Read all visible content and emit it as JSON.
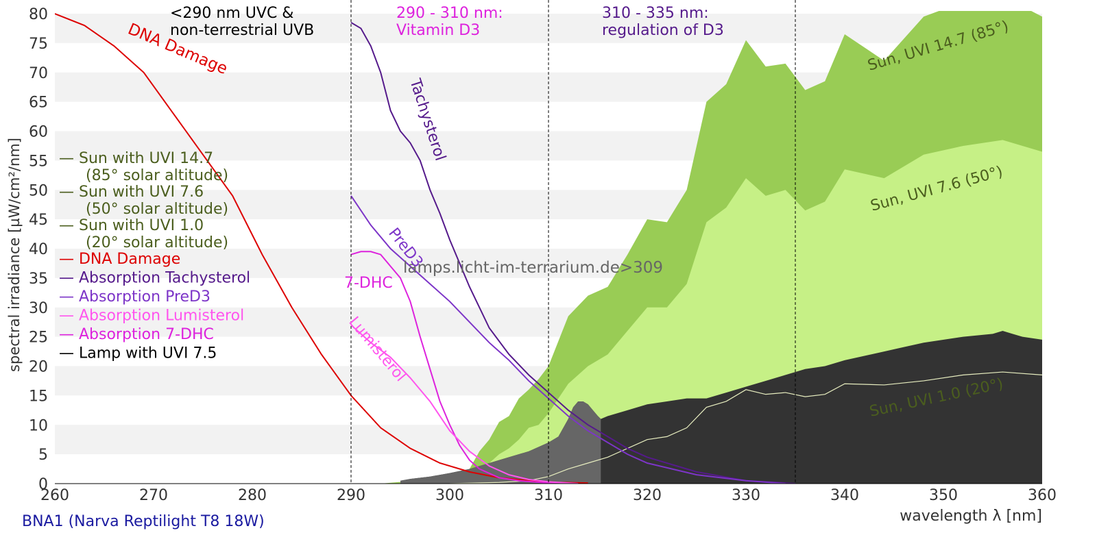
{
  "chart_data": {
    "type": "area",
    "xlabel": "wavelength λ [nm]",
    "ylabel": "spectral irradiance [µW/cm²/nm]",
    "xlim": [
      260,
      360
    ],
    "ylim": [
      0,
      80
    ],
    "xticks": [
      260,
      270,
      280,
      290,
      300,
      310,
      320,
      330,
      340,
      350,
      360
    ],
    "yticks": [
      0,
      5,
      10,
      15,
      20,
      25,
      30,
      35,
      40,
      45,
      50,
      55,
      60,
      65,
      70,
      75,
      80
    ],
    "grid": "horizontal bands",
    "legend_position": "left",
    "source_label": "BNA1 (Narva Reptilight T8 18W)",
    "watermark": "lamps.licht-im-terrarium.de>309",
    "region_markers": [
      290,
      310,
      335
    ],
    "regions": [
      {
        "label_line1": "<290 nm UVC &",
        "label_line2": "non-terrestrial UVB",
        "color": "#000000"
      },
      {
        "label_line1": "290 - 310 nm:",
        "label_line2": "Vitamin D3",
        "color": "#dd22dd"
      },
      {
        "label_line1": "310 - 335 nm:",
        "label_line2": "regulation of D3",
        "color": "#551a8b"
      }
    ],
    "legend": [
      {
        "line1": "— Sun with UVI 14.7",
        "line2": "(85° solar altitude)",
        "color": "#4b5e1e"
      },
      {
        "line1": "— Sun with UVI 7.6",
        "line2": "(50° solar altitude)",
        "color": "#4b5e1e"
      },
      {
        "line1": "— Sun with UVI 1.0",
        "line2": "(20° solar altitude)",
        "color": "#4b5e1e"
      },
      {
        "line1": "— DNA Damage",
        "line2": "",
        "color": "#dd0000"
      },
      {
        "line1": "— Absorption Tachysterol",
        "line2": "",
        "color": "#551a8b"
      },
      {
        "line1": "— Absorption PreD3",
        "line2": "",
        "color": "#7d35c8"
      },
      {
        "line1": "— Absorption Lumisterol",
        "line2": "",
        "color": "#ff55ee"
      },
      {
        "line1": "— Absorption 7-DHC",
        "line2": "",
        "color": "#dd22dd"
      },
      {
        "line1": "— Lamp with UVI 7.5",
        "line2": "",
        "color": "#000000"
      }
    ],
    "series": [
      {
        "name": "Sun, UVI 14.7 (85°)",
        "kind": "area",
        "color": "#99cc55",
        "label_color": "#4b5e1e",
        "x": [
          293,
          300,
          302,
          303,
          304,
          305,
          306,
          307,
          308,
          309,
          310,
          312,
          314,
          316,
          318,
          320,
          322,
          324,
          326,
          328,
          330,
          332,
          334,
          336,
          338,
          340,
          344,
          348,
          352,
          356,
          360
        ],
        "y": [
          0,
          1,
          2.5,
          5.5,
          7.5,
          10.5,
          11.5,
          14.5,
          16,
          17.8,
          20,
          28.5,
          32,
          33.5,
          39,
          45,
          44.5,
          50,
          65,
          68,
          75.5,
          71,
          71.5,
          67,
          68.5,
          76.5,
          72,
          79.5,
          82,
          83,
          79.5
        ]
      },
      {
        "name": "Sun, UVI 7.6 (50°)",
        "kind": "area",
        "color": "#c6f086",
        "label_color": "#4b5e1e",
        "x": [
          297,
          300,
          302,
          303,
          304,
          305,
          306,
          307,
          308,
          309,
          310,
          312,
          314,
          316,
          318,
          320,
          322,
          324,
          326,
          328,
          330,
          332,
          334,
          336,
          338,
          340,
          344,
          348,
          352,
          356,
          360
        ],
        "y": [
          0,
          0.5,
          1.5,
          2.5,
          3.5,
          5,
          6,
          7.5,
          9.5,
          10,
          12,
          17,
          20,
          22,
          26,
          30,
          30,
          34,
          44.5,
          47,
          52,
          49,
          50,
          46.5,
          48,
          53.5,
          52,
          56,
          57.5,
          58.5,
          56.5
        ]
      },
      {
        "name": "Sun, UVI 1.0 (20°)",
        "kind": "line",
        "color": "#e8eec0",
        "label_color": "#4b5e1e",
        "x": [
          300,
          305,
          308,
          310,
          312,
          314,
          316,
          318,
          320,
          322,
          324,
          326,
          328,
          330,
          332,
          334,
          336,
          338,
          340,
          344,
          348,
          352,
          356,
          360
        ],
        "y": [
          0,
          0.2,
          0.5,
          1.2,
          2.5,
          3.5,
          4.5,
          6,
          7.5,
          8,
          9.5,
          13,
          14,
          16,
          15.2,
          15.5,
          14.8,
          15.2,
          17,
          16.8,
          17.5,
          18.5,
          19,
          18.5
        ]
      },
      {
        "name": "Lamp with UVI 7.5",
        "kind": "area",
        "color": "#333333",
        "highlight_color": "#666666",
        "highlight_range": [
          295,
          315.3
        ],
        "x": [
          295,
          296,
          298,
          300,
          302,
          304,
          306,
          308,
          310,
          311,
          312,
          312.5,
          313,
          313.5,
          314,
          314.5,
          315,
          315.3,
          316,
          318,
          320,
          322,
          324,
          326,
          328,
          330,
          332,
          334,
          336,
          338,
          340,
          344,
          348,
          352,
          355,
          356,
          357,
          358,
          360
        ],
        "y": [
          0.5,
          0.8,
          1.2,
          1.8,
          2.5,
          3.5,
          4.5,
          5.5,
          7,
          8,
          11,
          13,
          14,
          14,
          13.5,
          12.5,
          11.5,
          11,
          11.5,
          12.5,
          13.5,
          14,
          14.5,
          14.5,
          15.5,
          16.5,
          17.5,
          18.5,
          19.5,
          20,
          21,
          22.5,
          24,
          25,
          25.5,
          26,
          25.5,
          25,
          24.5
        ]
      },
      {
        "name": "DNA Damage",
        "kind": "line",
        "color": "#dd0000",
        "x": [
          260,
          263,
          266,
          269,
          272,
          275,
          278,
          281,
          284,
          287,
          290,
          293,
          296,
          299,
          302,
          305,
          308,
          311,
          314
        ],
        "y": [
          80,
          78,
          74.5,
          70,
          63,
          56,
          49,
          39,
          30,
          22,
          15,
          9.5,
          6,
          3.5,
          2,
          1,
          0.5,
          0.2,
          0.1
        ]
      },
      {
        "name": "Tachysterol",
        "kind": "line",
        "color": "#551a8b",
        "x": [
          290,
          291,
          292,
          293,
          294,
          295,
          296,
          297,
          298,
          299,
          300,
          302,
          304,
          306,
          308,
          310,
          312,
          314,
          316,
          318,
          320,
          325,
          330,
          335
        ],
        "y": [
          78.5,
          77.5,
          74.5,
          70,
          63.5,
          60,
          58,
          55,
          50,
          46,
          41.5,
          33.5,
          26.5,
          22,
          18.5,
          15.5,
          12.5,
          10,
          8,
          6,
          4.5,
          2,
          0.5,
          0
        ]
      },
      {
        "name": "PreD3",
        "kind": "line",
        "color": "#7d35c8",
        "x": [
          290,
          292,
          294,
          296,
          298,
          300,
          302,
          304,
          306,
          308,
          310,
          312,
          314,
          316,
          318,
          320,
          325,
          330,
          334
        ],
        "y": [
          49,
          44,
          40,
          37,
          34,
          31,
          27.5,
          24,
          21,
          17.5,
          14.5,
          11.5,
          9,
          7,
          5,
          3.5,
          1.5,
          0.5,
          0
        ]
      },
      {
        "name": "7-DHC",
        "kind": "line",
        "color": "#dd22dd",
        "x": [
          290,
          291,
          292,
          293,
          294,
          295,
          296,
          297,
          298,
          299,
          300,
          301,
          302,
          303,
          305,
          307,
          310,
          313
        ],
        "y": [
          39,
          39.5,
          39.5,
          39,
          37,
          35,
          31,
          25,
          19.5,
          14,
          10,
          6.5,
          4,
          2.5,
          1,
          0.5,
          0.1,
          0
        ]
      },
      {
        "name": "Lumisterol",
        "kind": "line",
        "color": "#ff55ee",
        "x": [
          290,
          292,
          294,
          296,
          298,
          300,
          302,
          304,
          306,
          308,
          310,
          312,
          313
        ],
        "y": [
          27,
          24,
          21.5,
          18,
          14,
          9,
          5.5,
          3,
          1.5,
          0.7,
          0.3,
          0.1,
          0
        ]
      }
    ],
    "curve_labels": [
      {
        "text": "DNA Damage",
        "color": "#dd0000"
      },
      {
        "text": "Tachysterol",
        "color": "#551a8b"
      },
      {
        "text": "PreD3",
        "color": "#7d35c8"
      },
      {
        "text": "7-DHC",
        "color": "#dd22dd"
      },
      {
        "text": "Lumisterol",
        "color": "#ff55ee"
      },
      {
        "text": "Sun, UVI 14.7 (85°)",
        "color": "#4b5e1e"
      },
      {
        "text": "Sun, UVI 7.6 (50°)",
        "color": "#4b5e1e"
      },
      {
        "text": "Sun, UVI 1.0 (20°)",
        "color": "#4b5e1e"
      }
    ]
  }
}
